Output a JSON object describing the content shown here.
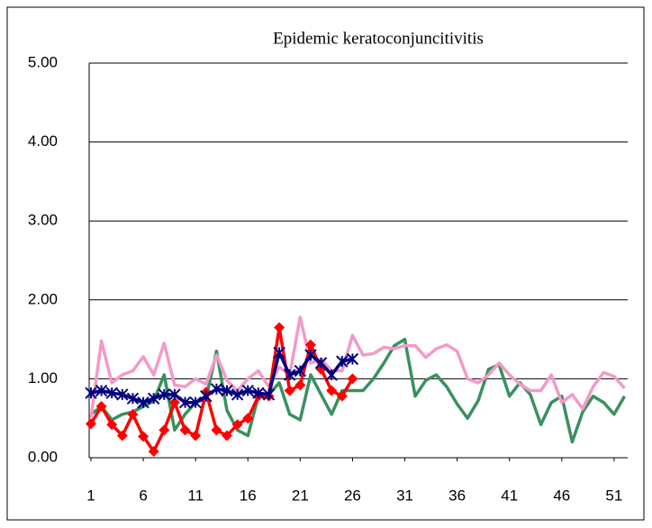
{
  "chart_data": {
    "type": "line",
    "title": "Epidemic keratoconjuncitivitis",
    "x": [
      1,
      2,
      3,
      4,
      5,
      6,
      7,
      8,
      9,
      10,
      11,
      12,
      13,
      14,
      15,
      16,
      17,
      18,
      19,
      20,
      21,
      22,
      23,
      24,
      25,
      26,
      27,
      28,
      29,
      30,
      31,
      32,
      33,
      34,
      35,
      36,
      37,
      38,
      39,
      40,
      41,
      42,
      43,
      44,
      45,
      46,
      47,
      48,
      49,
      50,
      51,
      52
    ],
    "xlim": [
      0.83,
      52.3
    ],
    "xticks": [
      1,
      6,
      11,
      16,
      21,
      26,
      31,
      36,
      41,
      46,
      51
    ],
    "ylim": [
      0,
      5
    ],
    "yticks": [
      {
        "value": 0,
        "label": "0.00"
      },
      {
        "value": 1,
        "label": "1.00"
      },
      {
        "value": 2,
        "label": "2.00"
      },
      {
        "value": 3,
        "label": "3.00"
      },
      {
        "value": 4,
        "label": "4.00"
      },
      {
        "value": 5,
        "label": "5.00"
      }
    ],
    "grid": true,
    "series": [
      {
        "color": "#3a9060",
        "marker": "none",
        "values": [
          0.55,
          0.65,
          0.48,
          0.55,
          0.58,
          0.65,
          0.72,
          1.05,
          0.35,
          0.55,
          0.7,
          0.75,
          1.35,
          0.6,
          0.35,
          0.28,
          0.78,
          0.8,
          0.95,
          0.55,
          0.48,
          1.05,
          0.8,
          0.55,
          0.85,
          0.85,
          0.85,
          1.0,
          1.2,
          1.42,
          1.5,
          0.78,
          0.98,
          1.05,
          0.9,
          0.68,
          0.5,
          0.72,
          1.12,
          1.18,
          0.78,
          0.95,
          0.8,
          0.42,
          0.7,
          0.78,
          0.2,
          0.58,
          0.78,
          0.7,
          0.55,
          0.78
        ]
      },
      {
        "color": "#f49ac8",
        "marker": "none",
        "values": [
          0.5,
          1.48,
          0.95,
          1.05,
          1.1,
          1.28,
          1.05,
          1.45,
          0.92,
          0.9,
          1.0,
          0.93,
          1.3,
          0.98,
          0.85,
          1.0,
          1.1,
          0.9,
          1.15,
          1.05,
          1.78,
          1.2,
          1.25,
          1.1,
          1.1,
          1.55,
          1.3,
          1.32,
          1.4,
          1.38,
          1.42,
          1.42,
          1.27,
          1.38,
          1.43,
          1.35,
          1.0,
          0.95,
          1.05,
          1.2,
          1.05,
          0.93,
          0.85,
          0.85,
          1.05,
          0.7,
          0.8,
          0.62,
          0.9,
          1.08,
          1.03,
          0.88
        ]
      },
      {
        "color": "#ff0000",
        "marker": "diamond",
        "values": [
          0.43,
          0.65,
          0.42,
          0.28,
          0.55,
          0.27,
          0.08,
          0.35,
          0.7,
          0.35,
          0.28,
          0.83,
          0.35,
          0.28,
          0.42,
          0.5,
          0.78,
          0.78,
          1.65,
          0.85,
          0.92,
          1.43,
          1.12,
          0.85,
          0.78,
          1.0,
          null,
          null,
          null,
          null,
          null,
          null,
          null,
          null,
          null,
          null,
          null,
          null,
          null,
          null,
          null,
          null,
          null,
          null,
          null,
          null,
          null,
          null,
          null,
          null,
          null,
          null
        ]
      },
      {
        "color": "#000080",
        "marker": "asterisk",
        "values": [
          0.82,
          0.85,
          0.82,
          0.8,
          0.75,
          0.7,
          0.75,
          0.8,
          0.8,
          0.7,
          0.7,
          0.78,
          0.87,
          0.85,
          0.8,
          0.85,
          0.82,
          0.8,
          1.33,
          1.05,
          1.1,
          1.3,
          1.2,
          1.05,
          1.22,
          1.25,
          null,
          null,
          null,
          null,
          null,
          null,
          null,
          null,
          null,
          null,
          null,
          null,
          null,
          null,
          null,
          null,
          null,
          null,
          null,
          null,
          null,
          null,
          null,
          null,
          null,
          null
        ]
      }
    ]
  }
}
